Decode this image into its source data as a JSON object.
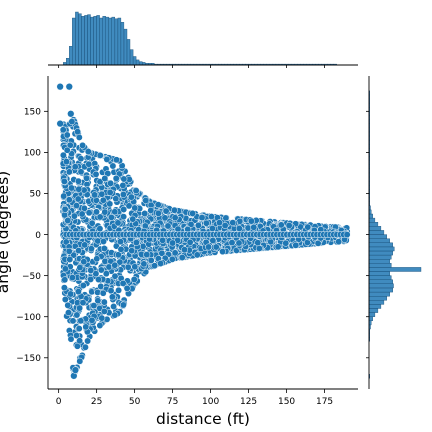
{
  "chart_data": {
    "type": "scatter",
    "variant": "jointplot with marginal histograms",
    "xlabel": "distance (ft)",
    "ylabel": "angle (degrees)",
    "xlim": [
      -7,
      197
    ],
    "ylim": [
      -188,
      193
    ],
    "x_ticks": [
      0,
      25,
      50,
      75,
      100,
      125,
      150,
      175
    ],
    "x_tick_labels": [
      "0",
      "25",
      "50",
      "75",
      "100",
      "125",
      "150",
      "175"
    ],
    "y_ticks": [
      -150,
      -100,
      -50,
      0,
      50,
      100,
      150
    ],
    "y_tick_labels": [
      "−150",
      "−100",
      "−50",
      "0",
      "50",
      "100",
      "150"
    ],
    "grid": false,
    "colors": {
      "points": "#1f77b4",
      "point_edge": "#ffffff",
      "hist_fill": "#1f77b4",
      "hist_edge": "#1a4f78",
      "axis": "#000000"
    },
    "envelope": [
      {
        "x": 3,
        "upper": 135,
        "lower": -45
      },
      {
        "x": 5,
        "upper": 130,
        "lower": -95
      },
      {
        "x": 10,
        "upper": 140,
        "lower": -170
      },
      {
        "x": 15,
        "upper": 110,
        "lower": -150
      },
      {
        "x": 20,
        "upper": 100,
        "lower": -125
      },
      {
        "x": 30,
        "upper": 95,
        "lower": -105
      },
      {
        "x": 40,
        "upper": 90,
        "lower": -95
      },
      {
        "x": 50,
        "upper": 55,
        "lower": -60
      },
      {
        "x": 60,
        "upper": 40,
        "lower": -40
      },
      {
        "x": 75,
        "upper": 30,
        "lower": -30
      },
      {
        "x": 100,
        "upper": 22,
        "lower": -22
      },
      {
        "x": 125,
        "upper": 18,
        "lower": -18
      },
      {
        "x": 150,
        "upper": 14,
        "lower": -14
      },
      {
        "x": 175,
        "upper": 10,
        "lower": -10
      },
      {
        "x": 190,
        "upper": 8,
        "lower": -8
      }
    ],
    "outliers": [
      {
        "x": 1,
        "y": 180
      },
      {
        "x": 7,
        "y": 180
      },
      {
        "x": 8,
        "y": 147
      },
      {
        "x": 1,
        "y": 135
      },
      {
        "x": 10,
        "y": -172
      },
      {
        "x": 11,
        "y": -165
      }
    ],
    "marginal_x": {
      "bin_start": 3,
      "bin_width": 2,
      "counts": [
        3,
        8,
        22,
        55,
        62,
        60,
        57,
        58,
        59,
        56,
        57,
        58,
        55,
        57,
        56,
        55,
        56,
        54,
        55,
        50,
        42,
        30,
        18,
        10,
        6,
        4,
        3,
        2,
        2,
        2,
        1,
        1,
        1,
        1,
        1,
        1,
        1,
        1,
        1,
        1,
        1,
        1,
        1,
        1,
        1,
        1,
        1,
        1,
        1,
        1,
        1,
        1,
        1,
        1,
        1,
        1,
        1,
        1,
        1,
        1,
        1,
        1,
        1,
        1,
        1,
        1,
        1,
        1,
        1,
        1,
        1,
        1,
        1,
        1,
        1,
        1,
        1,
        1,
        1,
        1,
        1,
        1,
        1,
        1,
        1,
        1,
        1,
        1,
        1,
        1
      ]
    },
    "marginal_y": {
      "bin_start": -180,
      "bin_width": 5,
      "counts": [
        0,
        1,
        0,
        0,
        0,
        0,
        0,
        0,
        0,
        0,
        1,
        1,
        1,
        2,
        3,
        5,
        8,
        12,
        16,
        20,
        24,
        28,
        32,
        33,
        32,
        30,
        28,
        70,
        30,
        28,
        30,
        32,
        34,
        32,
        28,
        24,
        20,
        16,
        12,
        8,
        5,
        3,
        2,
        1,
        1,
        1,
        1,
        1,
        1,
        1,
        1,
        1,
        1,
        1,
        1,
        1,
        1,
        1,
        1,
        1,
        1,
        1,
        1,
        1,
        1,
        1,
        1,
        1,
        1,
        1,
        1,
        0
      ]
    }
  }
}
